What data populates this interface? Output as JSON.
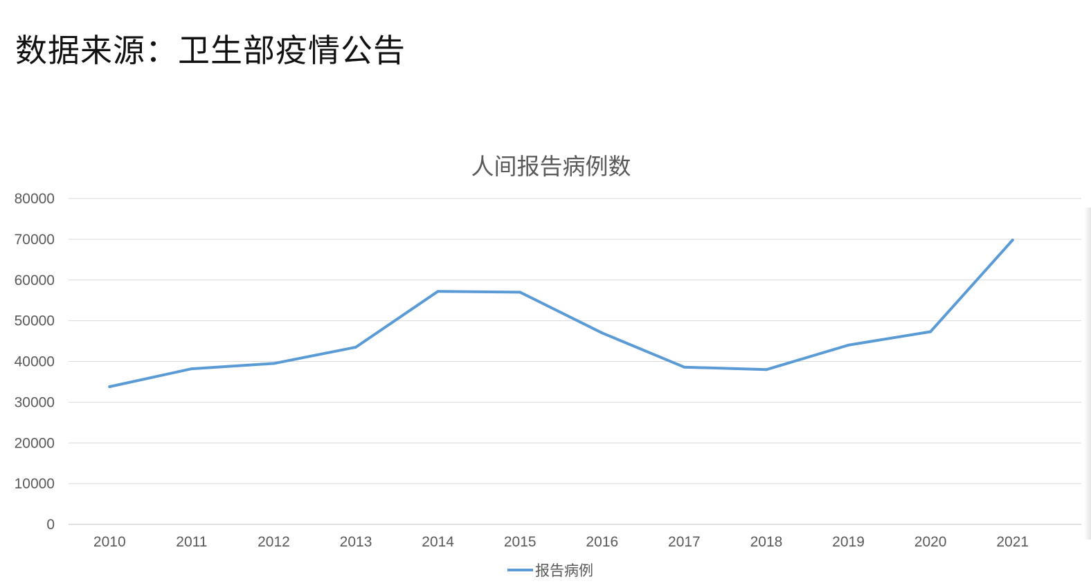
{
  "page": {
    "heading": "数据来源：卫生部疫情公告"
  },
  "chart_data": {
    "type": "line",
    "title": "人间报告病例数",
    "xlabel": "",
    "ylabel": "",
    "categories": [
      "2010",
      "2011",
      "2012",
      "2013",
      "2014",
      "2015",
      "2016",
      "2017",
      "2018",
      "2019",
      "2020",
      "2021"
    ],
    "series": [
      {
        "name": "报告病例",
        "color": "#5b9bd5",
        "values": [
          33800,
          38200,
          39500,
          43500,
          57200,
          57000,
          47000,
          38600,
          38000,
          44000,
          47300,
          69800
        ]
      }
    ],
    "ylim": [
      0,
      80000
    ],
    "yticks": [
      "0",
      "10000",
      "20000",
      "30000",
      "40000",
      "50000",
      "60000",
      "70000",
      "80000"
    ],
    "grid": true,
    "legend_position": "bottom"
  }
}
